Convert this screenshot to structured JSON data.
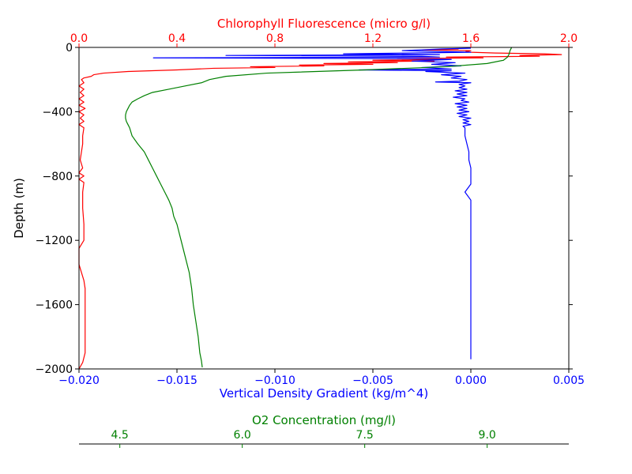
{
  "chart_data": {
    "type": "line",
    "ylabel": "Depth (m)",
    "yticks": [
      0,
      -400,
      -800,
      -1200,
      -1600,
      -2000
    ],
    "ylim": [
      -2000,
      0
    ],
    "grid": false,
    "colors": {
      "fluorescence": "#ff0000",
      "density": "#0000ff",
      "oxygen": "#008000",
      "axis": "#000000"
    },
    "axes": {
      "top": {
        "label": "Chlorophyll Fluorescence (micro g/l)",
        "xlim": [
          0.0,
          2.0
        ],
        "ticks": [
          0.0,
          0.4,
          0.8,
          1.2,
          1.6,
          2.0
        ],
        "tick_labels": [
          "0.0",
          "0.4",
          "0.8",
          "1.2",
          "1.6",
          "2.0"
        ],
        "color": "#ff0000"
      },
      "bottom": {
        "label": "Vertical Density Gradient (kg/m^4)",
        "xlim": [
          -0.02,
          0.005
        ],
        "ticks": [
          -0.02,
          -0.015,
          -0.01,
          -0.005,
          0.0,
          0.005
        ],
        "tick_labels": [
          "−0.020",
          "−0.015",
          "−0.010",
          "−0.005",
          "0.000",
          "0.005"
        ],
        "color": "#0000ff"
      },
      "oxygen": {
        "label": "O2 Concentration (mg/l)",
        "xlim": [
          4.0,
          10.0
        ],
        "ticks": [
          4.5,
          6.0,
          7.5,
          9.0
        ],
        "tick_labels": [
          "4.5",
          "6.0",
          "7.5",
          "9.0"
        ],
        "color": "#008000"
      }
    },
    "series": [
      {
        "key": "fluorescence",
        "axis": "top",
        "points": [
          [
            1.55,
            -10
          ],
          [
            1.4,
            -15
          ],
          [
            1.6,
            -20
          ],
          [
            1.58,
            -25
          ],
          [
            1.6,
            -30
          ],
          [
            1.7,
            -35
          ],
          [
            1.9,
            -40
          ],
          [
            1.97,
            -45
          ],
          [
            1.8,
            -50
          ],
          [
            1.88,
            -55
          ],
          [
            1.5,
            -60
          ],
          [
            1.65,
            -65
          ],
          [
            1.3,
            -70
          ],
          [
            1.5,
            -75
          ],
          [
            1.2,
            -80
          ],
          [
            1.45,
            -85
          ],
          [
            1.1,
            -90
          ],
          [
            1.3,
            -95
          ],
          [
            1.0,
            -100
          ],
          [
            1.2,
            -105
          ],
          [
            0.9,
            -110
          ],
          [
            1.0,
            -115
          ],
          [
            0.7,
            -120
          ],
          [
            0.8,
            -125
          ],
          [
            0.55,
            -130
          ],
          [
            0.4,
            -140
          ],
          [
            0.2,
            -150
          ],
          [
            0.1,
            -160
          ],
          [
            0.06,
            -170
          ],
          [
            0.05,
            -180
          ],
          [
            0.02,
            -190
          ],
          [
            0.01,
            -200
          ],
          [
            0.02,
            -220
          ],
          [
            0.0,
            -240
          ],
          [
            0.02,
            -260
          ],
          [
            0.005,
            -280
          ],
          [
            0.02,
            -300
          ],
          [
            0.0,
            -320
          ],
          [
            0.02,
            -340
          ],
          [
            0.0,
            -360
          ],
          [
            0.025,
            -380
          ],
          [
            0.0,
            -400
          ],
          [
            0.02,
            -420
          ],
          [
            0.005,
            -440
          ],
          [
            0.02,
            -460
          ],
          [
            0.0,
            -480
          ],
          [
            0.02,
            -500
          ],
          [
            0.015,
            -550
          ],
          [
            0.015,
            -600
          ],
          [
            0.01,
            -650
          ],
          [
            0.005,
            -700
          ],
          [
            0.015,
            -750
          ],
          [
            0.0,
            -780
          ],
          [
            0.02,
            -800
          ],
          [
            0.0,
            -820
          ],
          [
            0.02,
            -840
          ],
          [
            0.015,
            -900
          ],
          [
            0.015,
            -1000
          ],
          [
            0.02,
            -1100
          ],
          [
            0.02,
            -1200
          ],
          [
            0.0,
            -1250
          ],
          [
            0.0,
            -1350
          ],
          [
            0.02,
            -1450
          ],
          [
            0.025,
            -1500
          ],
          [
            0.025,
            -1600
          ],
          [
            0.025,
            -1700
          ],
          [
            0.025,
            -1800
          ],
          [
            0.025,
            -1900
          ],
          [
            0.015,
            -1960
          ],
          [
            0.0,
            -2000
          ]
        ]
      },
      {
        "key": "density",
        "axis": "bottom",
        "points": [
          [
            0.0,
            -5
          ],
          [
            -0.0015,
            -10
          ],
          [
            -0.0035,
            -20
          ],
          [
            0.0,
            -30
          ],
          [
            -0.0065,
            -40
          ],
          [
            -0.0016,
            -45
          ],
          [
            -0.0125,
            -50
          ],
          [
            -0.0025,
            -55
          ],
          [
            -0.0016,
            -60
          ],
          [
            -0.0162,
            -65
          ],
          [
            -0.0034,
            -70
          ],
          [
            -0.001,
            -75
          ],
          [
            -0.003,
            -85
          ],
          [
            -0.0008,
            -95
          ],
          [
            -0.002,
            -105
          ],
          [
            -0.0005,
            -115
          ],
          [
            -0.0025,
            -125
          ],
          [
            -0.001,
            -135
          ],
          [
            -0.0057,
            -140
          ],
          [
            -0.001,
            -145
          ],
          [
            -0.0023,
            -150
          ],
          [
            -0.0003,
            -160
          ],
          [
            -0.0015,
            -170
          ],
          [
            -0.0005,
            -180
          ],
          [
            -0.001,
            -190
          ],
          [
            -0.0002,
            -200
          ],
          [
            -0.0006,
            -210
          ],
          [
            -0.0018,
            -215
          ],
          [
            0.0,
            -220
          ],
          [
            -0.0006,
            -230
          ],
          [
            -0.0003,
            -240
          ],
          [
            -0.0006,
            -250
          ],
          [
            -0.0002,
            -260
          ],
          [
            -0.0008,
            -270
          ],
          [
            -0.0002,
            -280
          ],
          [
            -0.0007,
            -290
          ],
          [
            -0.0002,
            -300
          ],
          [
            -0.0009,
            -310
          ],
          [
            -0.0003,
            -320
          ],
          [
            -0.0005,
            -330
          ],
          [
            -0.0001,
            -340
          ],
          [
            -0.0008,
            -350
          ],
          [
            -0.0002,
            -360
          ],
          [
            -0.0007,
            -370
          ],
          [
            -0.0002,
            -380
          ],
          [
            -0.0006,
            -390
          ],
          [
            -0.0001,
            -400
          ],
          [
            -0.0007,
            -410
          ],
          [
            -0.0002,
            -420
          ],
          [
            -0.0006,
            -430
          ],
          [
            0.0,
            -440
          ],
          [
            -0.0004,
            -450
          ],
          [
            -0.0001,
            -460
          ],
          [
            -0.0004,
            -470
          ],
          [
            0.0,
            -480
          ],
          [
            -0.0004,
            -490
          ],
          [
            -0.0003,
            -500
          ],
          [
            -0.0003,
            -550
          ],
          [
            -0.0002,
            -600
          ],
          [
            -0.0001,
            -650
          ],
          [
            -0.0001,
            -700
          ],
          [
            0.0,
            -750
          ],
          [
            0.0,
            -800
          ],
          [
            0.0,
            -850
          ],
          [
            -0.0003,
            -900
          ],
          [
            0.0,
            -950
          ],
          [
            0.0,
            -1000
          ],
          [
            0.0,
            -1100
          ],
          [
            0.0,
            -1200
          ],
          [
            0.0,
            -1300
          ],
          [
            0.0,
            -1400
          ],
          [
            0.0,
            -1500
          ],
          [
            0.0,
            -1600
          ],
          [
            0.0,
            -1700
          ],
          [
            0.0,
            -1800
          ],
          [
            0.0,
            -1900
          ],
          [
            0.0,
            -1940
          ]
        ]
      },
      {
        "key": "oxygen",
        "axis": "oxygen",
        "points": [
          [
            9.3,
            0
          ],
          [
            9.28,
            -20
          ],
          [
            9.27,
            -40
          ],
          [
            9.25,
            -60
          ],
          [
            9.2,
            -80
          ],
          [
            9.0,
            -100
          ],
          [
            8.5,
            -120
          ],
          [
            7.5,
            -140
          ],
          [
            6.3,
            -160
          ],
          [
            5.8,
            -180
          ],
          [
            5.6,
            -200
          ],
          [
            5.5,
            -220
          ],
          [
            5.3,
            -240
          ],
          [
            5.1,
            -260
          ],
          [
            4.9,
            -280
          ],
          [
            4.8,
            -300
          ],
          [
            4.72,
            -320
          ],
          [
            4.65,
            -340
          ],
          [
            4.62,
            -360
          ],
          [
            4.6,
            -380
          ],
          [
            4.58,
            -400
          ],
          [
            4.57,
            -420
          ],
          [
            4.57,
            -440
          ],
          [
            4.58,
            -460
          ],
          [
            4.6,
            -480
          ],
          [
            4.62,
            -500
          ],
          [
            4.65,
            -550
          ],
          [
            4.72,
            -600
          ],
          [
            4.8,
            -650
          ],
          [
            4.85,
            -700
          ],
          [
            4.9,
            -750
          ],
          [
            4.95,
            -800
          ],
          [
            5.0,
            -850
          ],
          [
            5.05,
            -900
          ],
          [
            5.1,
            -950
          ],
          [
            5.14,
            -1000
          ],
          [
            5.16,
            -1050
          ],
          [
            5.2,
            -1100
          ],
          [
            5.25,
            -1200
          ],
          [
            5.3,
            -1300
          ],
          [
            5.35,
            -1400
          ],
          [
            5.38,
            -1500
          ],
          [
            5.4,
            -1600
          ],
          [
            5.43,
            -1700
          ],
          [
            5.46,
            -1800
          ],
          [
            5.48,
            -1900
          ],
          [
            5.5,
            -1950
          ],
          [
            5.51,
            -1990
          ]
        ]
      }
    ]
  }
}
